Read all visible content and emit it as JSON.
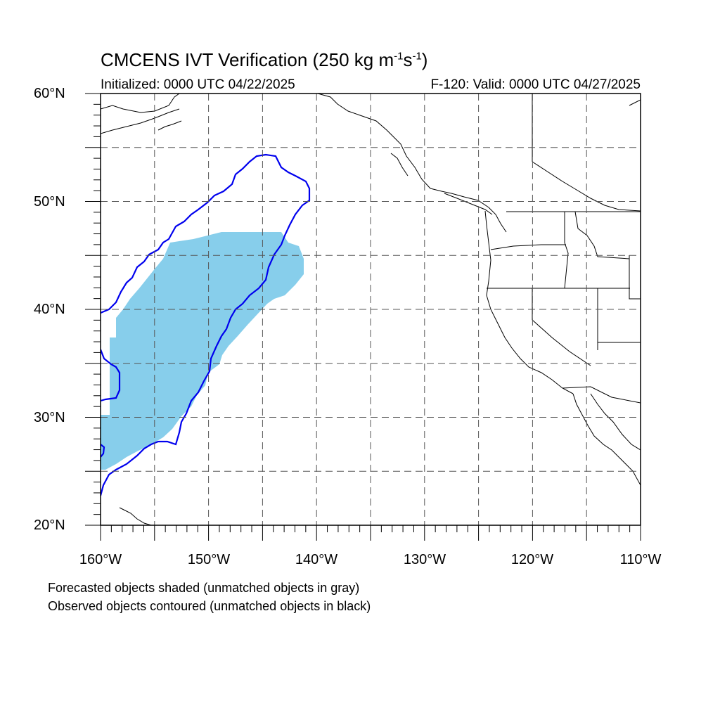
{
  "title": {
    "prefix": "CMCENS IVT Verification (250 kg m",
    "sup1": "-1",
    "mid": "s",
    "sup2": "-1",
    "suffix": ")"
  },
  "init_label": "Initialized: 0000 UTC 04/22/2025",
  "valid_label": "F-120: Valid: 0000 UTC 04/27/2025",
  "lat_labels": [
    "60°N",
    "50°N",
    "40°N",
    "30°N",
    "20°N"
  ],
  "lon_labels": [
    "160°W",
    "150°W",
    "140°W",
    "130°W",
    "120°W",
    "110°W"
  ],
  "footnotes": [
    "Forecasted objects shaded (unmatched objects in gray)",
    "Observed objects contoured (unmatched objects in black)"
  ],
  "colors": {
    "forecast_fill": "#87ceeb",
    "observed_contour": "#0000ee",
    "gridline": "#555555"
  },
  "map_extent": {
    "lon_min": -160,
    "lon_max": -110,
    "lat_min": 20,
    "lat_max": 60
  }
}
